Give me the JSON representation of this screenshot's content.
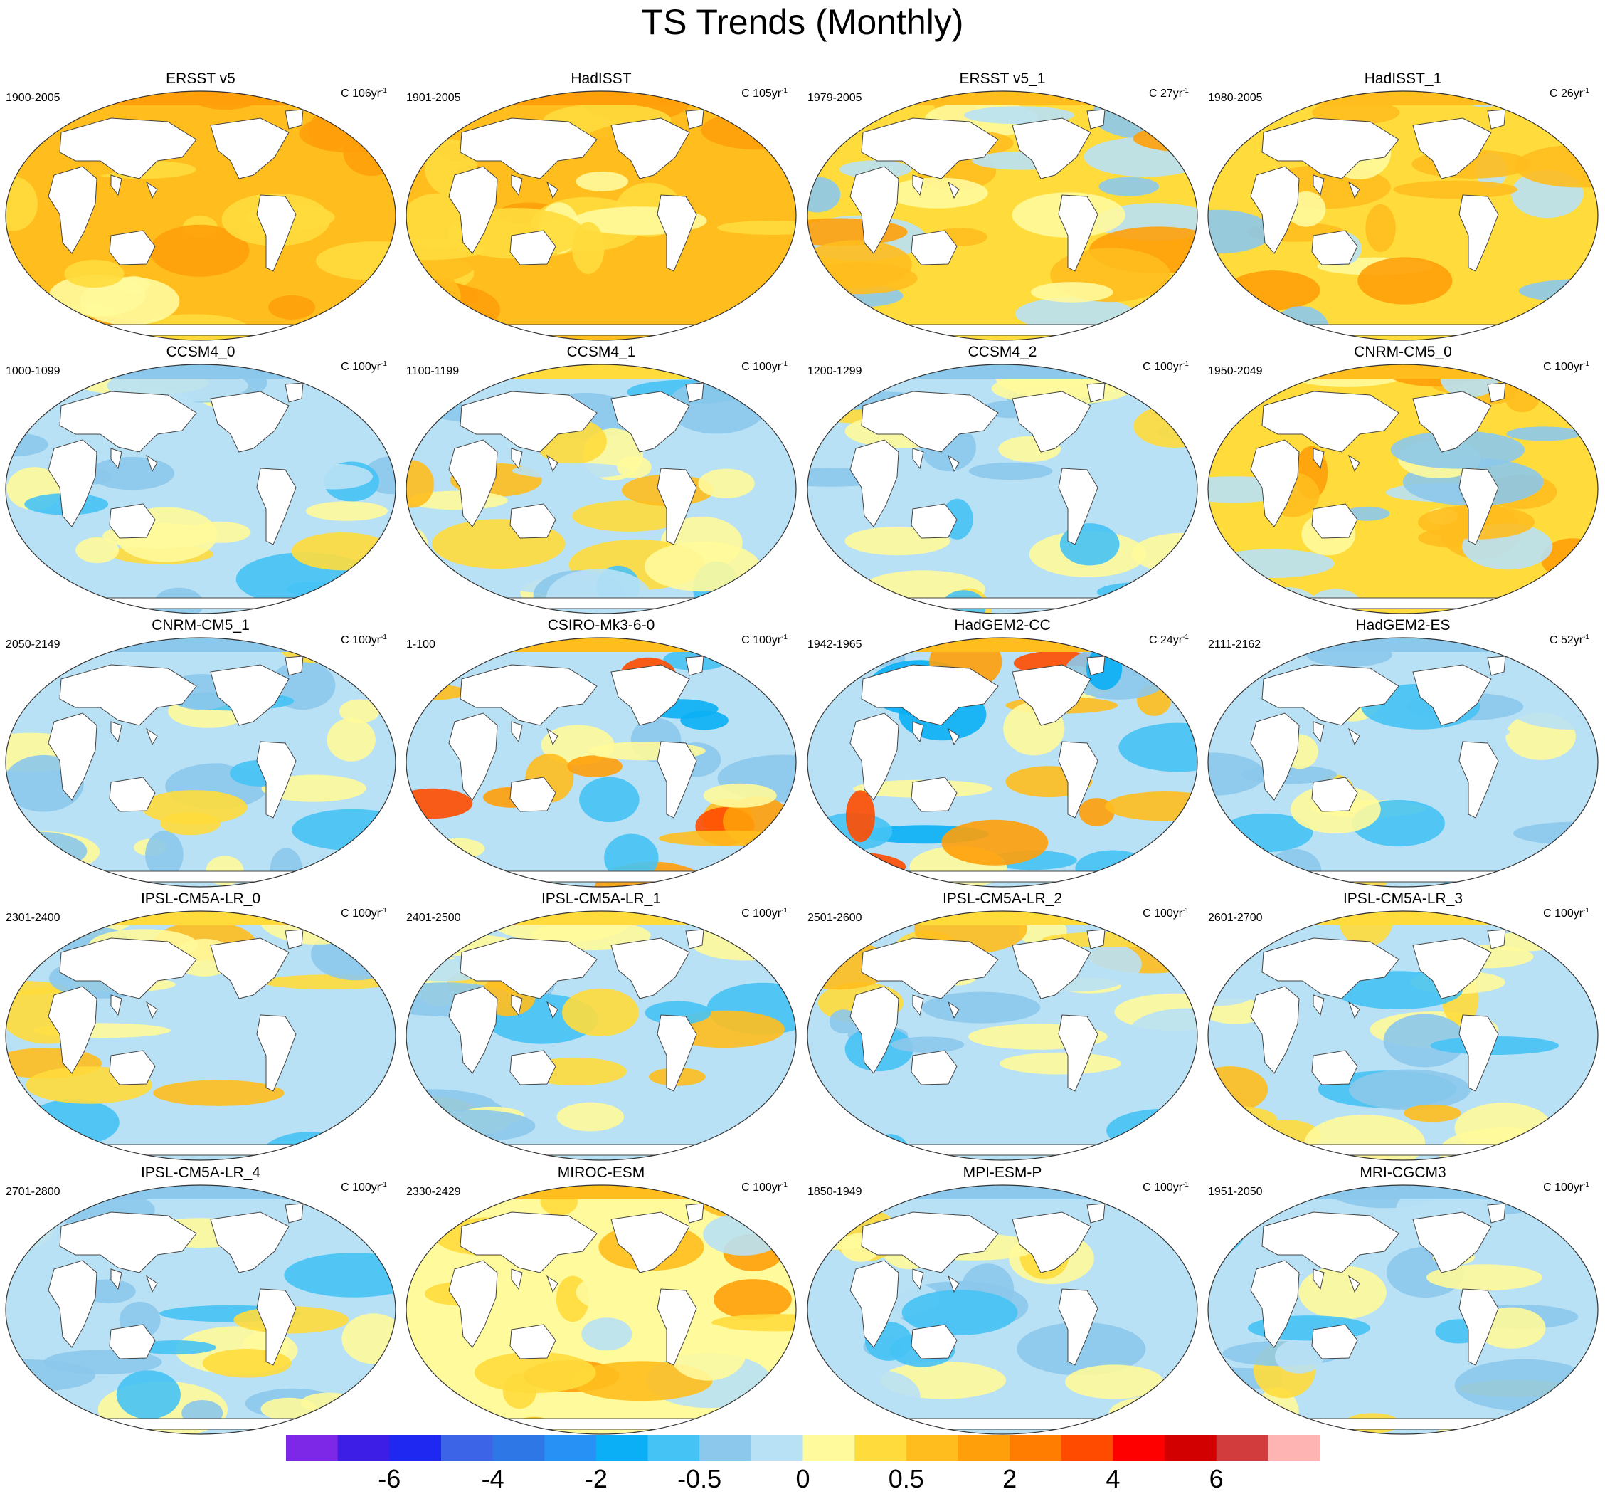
{
  "title": "TS Trends (Monthly)",
  "panels": [
    {
      "title": "ERSST v5",
      "period": "1900-2005",
      "units": "C 106yr",
      "units_exp": "-1",
      "scheme": "warm"
    },
    {
      "title": "HadISST",
      "period": "1901-2005",
      "units": "C 105yr",
      "units_exp": "-1",
      "scheme": "warm"
    },
    {
      "title": "ERSST v5_1",
      "period": "1979-2005",
      "units": "C 27yr",
      "units_exp": "-1",
      "scheme": "mixed-warm"
    },
    {
      "title": "HadISST_1",
      "period": "1980-2005",
      "units": "C 26yr",
      "units_exp": "-1",
      "scheme": "mixed-warm"
    },
    {
      "title": "CCSM4_0",
      "period": "1000-1099",
      "units": "C 100yr",
      "units_exp": "-1",
      "scheme": "cool"
    },
    {
      "title": "CCSM4_1",
      "period": "1100-1199",
      "units": "C 100yr",
      "units_exp": "-1",
      "scheme": "mixed"
    },
    {
      "title": "CCSM4_2",
      "period": "1200-1299",
      "units": "C 100yr",
      "units_exp": "-1",
      "scheme": "cool"
    },
    {
      "title": "CNRM-CM5_0",
      "period": "1950-2049",
      "units": "C 100yr",
      "units_exp": "-1",
      "scheme": "mixed-warm"
    },
    {
      "title": "CNRM-CM5_1",
      "period": "2050-2149",
      "units": "C 100yr",
      "units_exp": "-1",
      "scheme": "cool"
    },
    {
      "title": "CSIRO-Mk3-6-0",
      "period": "1-100",
      "units": "C 100yr",
      "units_exp": "-1",
      "scheme": "strong"
    },
    {
      "title": "HadGEM2-CC",
      "period": "1942-1965",
      "units": "C 24yr",
      "units_exp": "-1",
      "scheme": "strong"
    },
    {
      "title": "HadGEM2-ES",
      "period": "2111-2162",
      "units": "C 52yr",
      "units_exp": "-1",
      "scheme": "cool"
    },
    {
      "title": "IPSL-CM5A-LR_0",
      "period": "2301-2400",
      "units": "C 100yr",
      "units_exp": "-1",
      "scheme": "mixed"
    },
    {
      "title": "IPSL-CM5A-LR_1",
      "period": "2401-2500",
      "units": "C 100yr",
      "units_exp": "-1",
      "scheme": "mixed"
    },
    {
      "title": "IPSL-CM5A-LR_2",
      "period": "2501-2600",
      "units": "C 100yr",
      "units_exp": "-1",
      "scheme": "mixed"
    },
    {
      "title": "IPSL-CM5A-LR_3",
      "period": "2601-2700",
      "units": "C 100yr",
      "units_exp": "-1",
      "scheme": "mixed"
    },
    {
      "title": "IPSL-CM5A-LR_4",
      "period": "2701-2800",
      "units": "C 100yr",
      "units_exp": "-1",
      "scheme": "cool"
    },
    {
      "title": "MIROC-ESM",
      "period": "2330-2429",
      "units": "C 100yr",
      "units_exp": "-1",
      "scheme": "warm-light"
    },
    {
      "title": "MPI-ESM-P",
      "period": "1850-1949",
      "units": "C 100yr",
      "units_exp": "-1",
      "scheme": "cool"
    },
    {
      "title": "MRI-CGCM3",
      "period": "1951-2050",
      "units": "C 100yr",
      "units_exp": "-1",
      "scheme": "cool"
    }
  ],
  "colorbar": {
    "colors": [
      "#7d28e6",
      "#3c1ee6",
      "#1e28f0",
      "#3c64e6",
      "#2d78e6",
      "#2891f5",
      "#0aaff5",
      "#46c3f5",
      "#8cc8eb",
      "#b9e1f5",
      "#fffa9b",
      "#ffdc3c",
      "#ffbe1e",
      "#ffa00a",
      "#ff7d00",
      "#ff4b00",
      "#ff0000",
      "#d20000",
      "#d23c3c",
      "#ffb4b4"
    ],
    "labels": [
      "-6",
      "-4",
      "-2",
      "-0.5",
      "0",
      "0.5",
      "2",
      "4",
      "6"
    ],
    "label_boundaries": [
      2,
      4,
      6,
      8,
      10,
      12,
      14,
      16,
      18
    ]
  }
}
